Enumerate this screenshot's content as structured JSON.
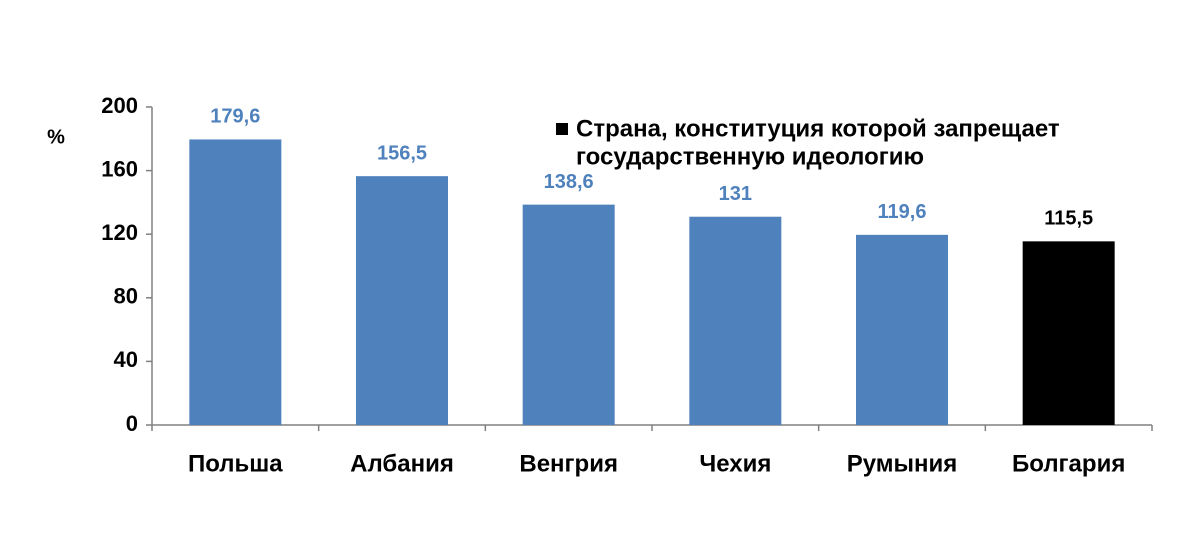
{
  "chart_data": {
    "type": "bar",
    "y_label": "%",
    "categories": [
      "Польша",
      "Албания",
      "Венгрия",
      "Чехия",
      "Румыния",
      "Болгария"
    ],
    "values": [
      179.6,
      156.5,
      138.6,
      131,
      119.6,
      115.5
    ],
    "value_labels": [
      "179,6",
      "156,5",
      "138,6",
      "131",
      "119,6",
      "115,5"
    ],
    "colors": [
      "#4f81bd",
      "#4f81bd",
      "#4f81bd",
      "#4f81bd",
      "#4f81bd",
      "#000000"
    ],
    "legend": {
      "lines": [
        "Страна, конституция которой запрещает",
        "государственную идеологию"
      ],
      "color": "#000000"
    },
    "ylim": [
      0,
      200
    ],
    "yticks": [
      0,
      40,
      80,
      120,
      160,
      200
    ],
    "grid": false
  }
}
